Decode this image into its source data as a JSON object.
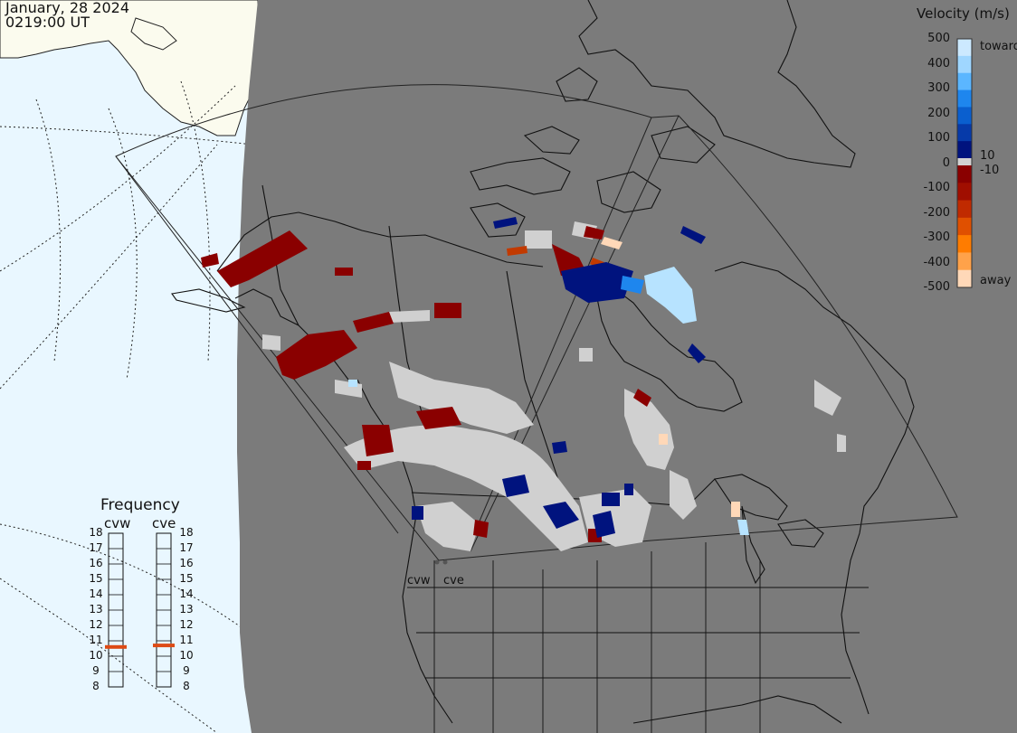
{
  "header": {
    "date": "January, 28 2024",
    "time": "0219:00 UT"
  },
  "velocity_scale": {
    "title": "Velocity (m/s)",
    "ticks": [
      "500",
      "400",
      "300",
      "200",
      "100",
      "0",
      "-100",
      "-200",
      "-300",
      "-400",
      "-500"
    ],
    "toward_label": "toward",
    "away_label": "away",
    "gap_pos_label": "10",
    "gap_neg_label": "-10",
    "colors_toward": [
      "#cce9ff",
      "#9fd6ff",
      "#5bb6ff",
      "#1e86ee",
      "#0a5fcf",
      "#063aa9",
      "#00137e"
    ],
    "colors_away": [
      "#8a0000",
      "#a00e00",
      "#c02a00",
      "#e05000",
      "#ff7c00",
      "#ffa24a",
      "#ffd8b8"
    ],
    "colors_gap": "#d2d2d2"
  },
  "frequency_panel": {
    "title": "Frequency",
    "radars": [
      {
        "name": "cvw",
        "current_mhz": 10.6
      },
      {
        "name": "cve",
        "current_mhz": 10.7
      }
    ],
    "ticks": [
      "18",
      "17",
      "16",
      "15",
      "14",
      "13",
      "12",
      "11",
      "10",
      "9",
      "8"
    ]
  },
  "map": {
    "ocean_color": "#e9f7ff",
    "land_color": "#fbfbee",
    "night_color": "#7b7b7b",
    "scatter_colors": {
      "ground": "#d0d0d0",
      "away": "#8a0000",
      "toward": "#00137e",
      "strong_toward": "#b7e3ff",
      "orange": "#c23a00"
    },
    "sites": [
      {
        "name": "cvw"
      },
      {
        "name": "cve"
      }
    ]
  }
}
